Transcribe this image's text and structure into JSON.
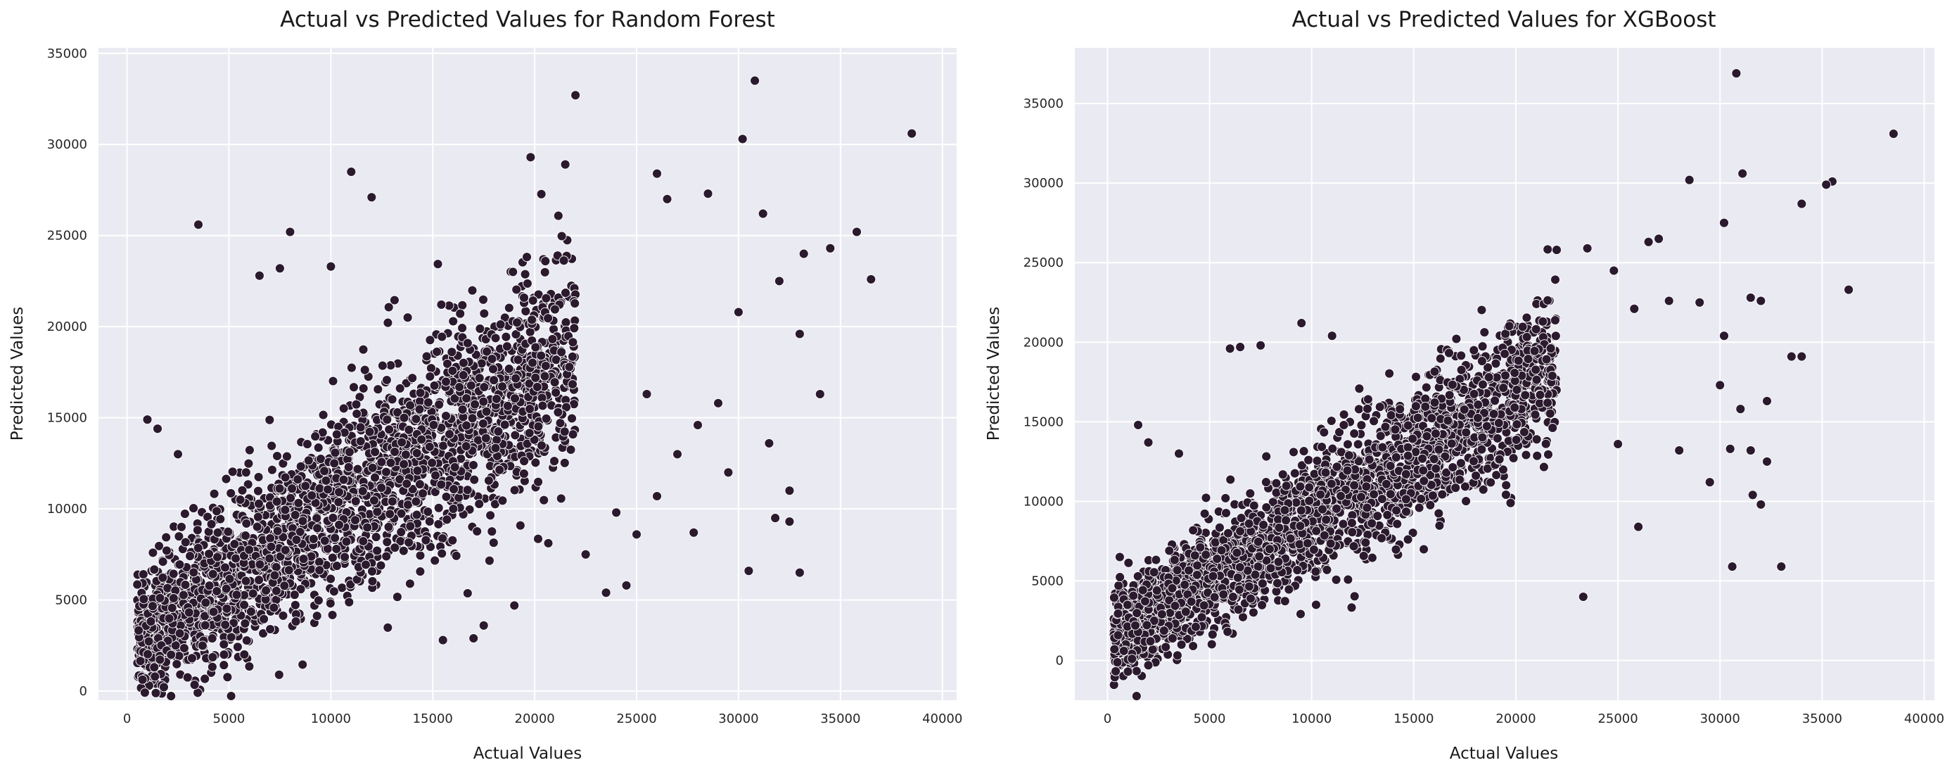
{
  "chart_data": [
    {
      "type": "scatter",
      "title": "Actual vs Predicted Values for Random Forest",
      "xlabel": "Actual Values",
      "ylabel": "Predicted Values",
      "xlim": [
        -1400,
        40700
      ],
      "ylim": [
        -500,
        35300
      ],
      "xticks": [
        0,
        5000,
        10000,
        15000,
        20000,
        25000,
        30000,
        35000,
        40000
      ],
      "yticks": [
        0,
        5000,
        10000,
        15000,
        20000,
        25000,
        30000,
        35000
      ],
      "xtick_labels": [
        "0",
        "5000",
        "10000",
        "15000",
        "20000",
        "25000",
        "30000",
        "35000",
        "40000"
      ],
      "ytick_labels": [
        "0",
        "5000",
        "10000",
        "15000",
        "20000",
        "25000",
        "30000",
        "35000"
      ],
      "grid": true,
      "marker_color": "#2b1a2e",
      "background": "#eaeaf2",
      "trend": {
        "x_min": 500,
        "x_max": 22000,
        "slope": 0.72,
        "intercept": 2600,
        "spread": 2900,
        "n": 2600
      },
      "points": [
        [
          30800,
          33500
        ],
        [
          22000,
          32700
        ],
        [
          30200,
          30300
        ],
        [
          38500,
          30600
        ],
        [
          11000,
          28500
        ],
        [
          19800,
          29300
        ],
        [
          21500,
          28900
        ],
        [
          26000,
          28400
        ],
        [
          35800,
          25200
        ],
        [
          36500,
          22600
        ],
        [
          33000,
          19600
        ],
        [
          34000,
          16300
        ],
        [
          31500,
          13600
        ],
        [
          29500,
          12000
        ],
        [
          30500,
          6600
        ],
        [
          33000,
          6500
        ],
        [
          31800,
          9500
        ],
        [
          32500,
          9300
        ],
        [
          32500,
          11000
        ],
        [
          29000,
          15800
        ],
        [
          27800,
          8700
        ],
        [
          24500,
          5800
        ],
        [
          23500,
          5400
        ],
        [
          19000,
          4700
        ],
        [
          15500,
          2800
        ],
        [
          17000,
          2900
        ],
        [
          17500,
          3600
        ],
        [
          28000,
          14600
        ],
        [
          30000,
          20800
        ],
        [
          32000,
          22500
        ],
        [
          34500,
          24300
        ],
        [
          33200,
          24000
        ],
        [
          28500,
          27300
        ],
        [
          26500,
          27000
        ],
        [
          31200,
          26200
        ],
        [
          8000,
          25200
        ],
        [
          3500,
          25600
        ],
        [
          7500,
          23200
        ],
        [
          10000,
          23300
        ],
        [
          6500,
          22800
        ],
        [
          1000,
          14900
        ],
        [
          2500,
          13000
        ],
        [
          1500,
          14400
        ],
        [
          12000,
          27100
        ],
        [
          27000,
          13000
        ],
        [
          25500,
          16300
        ],
        [
          26000,
          10700
        ],
        [
          25000,
          8600
        ],
        [
          24000,
          9800
        ],
        [
          22500,
          7500
        ]
      ]
    },
    {
      "type": "scatter",
      "title": "Actual vs Predicted Values for XGBoost",
      "xlabel": "Actual Values",
      "ylabel": "Predicted Values",
      "xlim": [
        -1600,
        40500
      ],
      "ylim": [
        -2500,
        38500
      ],
      "xticks": [
        0,
        5000,
        10000,
        15000,
        20000,
        25000,
        30000,
        35000,
        40000
      ],
      "yticks": [
        0,
        5000,
        10000,
        15000,
        20000,
        25000,
        30000,
        35000
      ],
      "xtick_labels": [
        "0",
        "5000",
        "10000",
        "15000",
        "20000",
        "25000",
        "30000",
        "35000",
        "40000"
      ],
      "ytick_labels": [
        "0",
        "5000",
        "10000",
        "15000",
        "20000",
        "25000",
        "30000",
        "35000"
      ],
      "grid": true,
      "marker_color": "#2b1a2e",
      "background": "#eaeaf2",
      "trend": {
        "x_min": 300,
        "x_max": 22000,
        "slope": 0.78,
        "intercept": 1300,
        "spread": 2300,
        "n": 2600
      },
      "points": [
        [
          30800,
          36900
        ],
        [
          38500,
          33100
        ],
        [
          35500,
          30100
        ],
        [
          35200,
          29900
        ],
        [
          34000,
          28700
        ],
        [
          28500,
          30200
        ],
        [
          31100,
          30600
        ],
        [
          30200,
          27500
        ],
        [
          27000,
          26500
        ],
        [
          26500,
          26300
        ],
        [
          36300,
          23300
        ],
        [
          33500,
          19100
        ],
        [
          34000,
          19100
        ],
        [
          31500,
          22800
        ],
        [
          32000,
          22600
        ],
        [
          32300,
          16300
        ],
        [
          31000,
          15800
        ],
        [
          32300,
          12500
        ],
        [
          31500,
          13200
        ],
        [
          30500,
          13300
        ],
        [
          32000,
          9800
        ],
        [
          30600,
          5900
        ],
        [
          33000,
          5900
        ],
        [
          23300,
          4000
        ],
        [
          25000,
          13600
        ],
        [
          26000,
          8400
        ],
        [
          28000,
          13200
        ],
        [
          29500,
          11200
        ],
        [
          30000,
          17300
        ],
        [
          31600,
          10400
        ],
        [
          9500,
          21200
        ],
        [
          6000,
          19600
        ],
        [
          7500,
          19800
        ],
        [
          6500,
          19700
        ],
        [
          1500,
          14800
        ],
        [
          2000,
          13700
        ],
        [
          3500,
          13000
        ],
        [
          11000,
          20400
        ],
        [
          22000,
          25800
        ],
        [
          23500,
          25900
        ],
        [
          24800,
          24500
        ],
        [
          27500,
          22600
        ],
        [
          25800,
          22100
        ],
        [
          29000,
          22500
        ],
        [
          30200,
          20400
        ],
        [
          2000,
          -300
        ],
        [
          1200,
          100
        ],
        [
          800,
          600
        ],
        [
          1000,
          -700
        ],
        [
          600,
          6500
        ]
      ]
    }
  ]
}
